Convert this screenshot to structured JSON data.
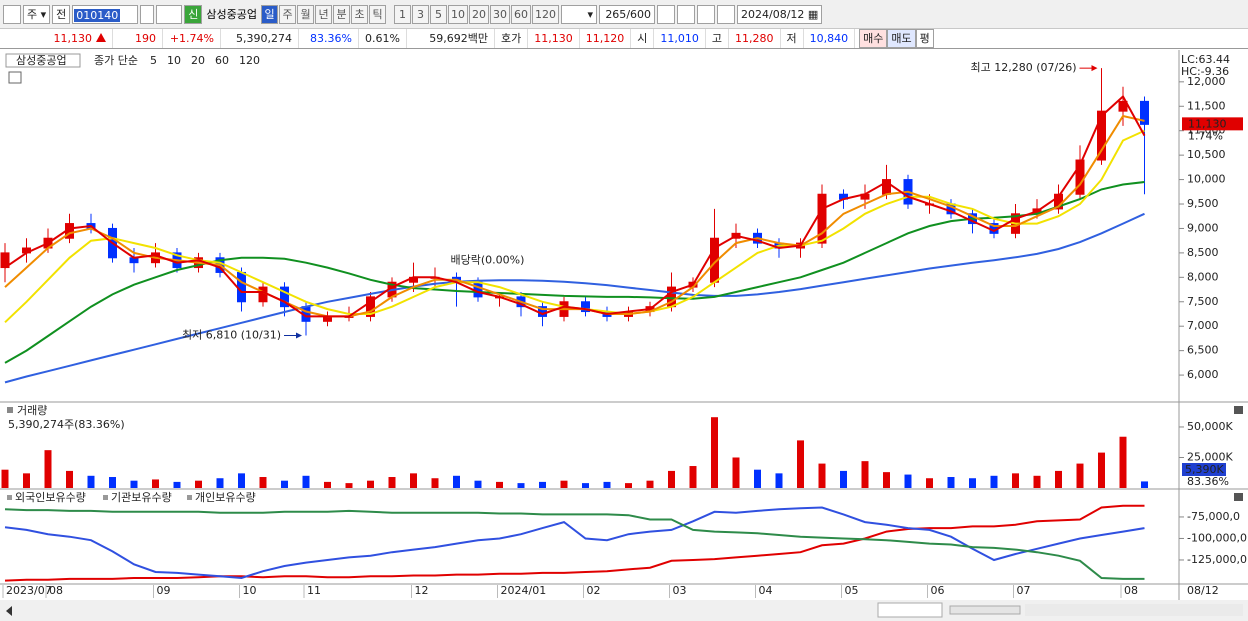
{
  "toolbar": {
    "market": "주",
    "scope": "전",
    "code": "010140",
    "credit": "신",
    "name": "삼성중공업",
    "periods": [
      "일",
      "주",
      "월",
      "년",
      "분",
      "초",
      "틱"
    ],
    "intervals": [
      "1",
      "3",
      "5",
      "10",
      "20",
      "30",
      "60",
      "120"
    ],
    "count": "265",
    "max": "/600",
    "date": "2024/08/12"
  },
  "info_bar": {
    "price": "11,130",
    "change": "190",
    "rate": "+1.74%",
    "volume": "5,390,274",
    "volume_ratio": "83.36%",
    "turnover": "0.61%",
    "amount": "59,692백만",
    "quote_label": "호가",
    "ask": "11,130",
    "bid": "11,120",
    "open_label": "시",
    "open": "11,010",
    "high_label": "고",
    "high": "11,280",
    "low_label": "저",
    "low": "10,840",
    "buy": "매수",
    "sell": "매도",
    "avg": "평"
  },
  "chart_data": [
    {
      "type": "candlestick",
      "name": "삼성중공업",
      "legend_prefix": "종가 단순",
      "open": [
        8200,
        8500,
        8600,
        8800,
        9100,
        9000,
        8400,
        8300,
        8500,
        8200,
        8400,
        8100,
        7500,
        7800,
        7400,
        7100,
        7200,
        7200,
        7600,
        7900,
        8000,
        8000,
        7900,
        7600,
        7600,
        7400,
        7200,
        7500,
        7300,
        7200,
        7300,
        7400,
        7800,
        7900,
        8800,
        8900,
        8700,
        8600,
        8700,
        9700,
        9600,
        9700,
        10000,
        9500,
        9500,
        9300,
        9100,
        8900,
        9300,
        9400,
        9700,
        10400,
        11400,
        11600
      ],
      "high": [
        8700,
        8800,
        9000,
        9300,
        9300,
        9100,
        8600,
        8700,
        8600,
        8500,
        8500,
        8200,
        7900,
        7900,
        7500,
        7300,
        7400,
        7700,
        8000,
        8300,
        8200,
        8100,
        8000,
        7700,
        7700,
        7500,
        7600,
        7600,
        7400,
        7400,
        7500,
        8100,
        8000,
        9400,
        9100,
        9000,
        8800,
        8800,
        9900,
        9800,
        9900,
        10300,
        10100,
        9700,
        9600,
        9400,
        9200,
        9500,
        9600,
        9900,
        10700,
        12280,
        11900,
        11700
      ],
      "low": [
        7900,
        8300,
        8500,
        8700,
        8900,
        8300,
        8100,
        8200,
        8100,
        8100,
        8000,
        7300,
        7400,
        7200,
        6810,
        7000,
        7100,
        7100,
        7500,
        7700,
        7800,
        7400,
        7500,
        7400,
        7200,
        7000,
        7100,
        7200,
        7100,
        7100,
        7200,
        7300,
        7700,
        7800,
        8600,
        8600,
        8400,
        8400,
        8600,
        9400,
        9400,
        9600,
        9400,
        9300,
        9200,
        8900,
        8800,
        8800,
        9200,
        9300,
        9600,
        10300,
        11100,
        9700
      ],
      "close": [
        8500,
        8600,
        8800,
        9100,
        9000,
        8400,
        8300,
        8500,
        8200,
        8400,
        8100,
        7500,
        7800,
        7400,
        7100,
        7200,
        7200,
        7600,
        7900,
        8000,
        8000,
        7900,
        7600,
        7600,
        7400,
        7200,
        7500,
        7300,
        7200,
        7300,
        7400,
        7800,
        7900,
        8800,
        8900,
        8700,
        8600,
        8700,
        9700,
        9600,
        9700,
        10000,
        9500,
        9500,
        9300,
        9100,
        8900,
        9300,
        9400,
        9700,
        10400,
        11400,
        11600,
        11130
      ],
      "up_color": "#e00000",
      "down_color": "#0030ff",
      "series": [
        {
          "name": "5",
          "color": "#e00000",
          "values": [
            8200,
            8500,
            8700,
            9000,
            9050,
            8700,
            8400,
            8450,
            8300,
            8350,
            8200,
            7700,
            7700,
            7500,
            7200,
            7200,
            7200,
            7500,
            7800,
            8000,
            8000,
            7900,
            7700,
            7600,
            7450,
            7250,
            7400,
            7350,
            7250,
            7300,
            7350,
            7700,
            7850,
            8600,
            8850,
            8750,
            8600,
            8650,
            9400,
            9600,
            9700,
            9950,
            9650,
            9500,
            9350,
            9150,
            8950,
            9200,
            9350,
            9650,
            10300,
            11300,
            11700,
            10900
          ]
        },
        {
          "name": "10",
          "color": "#f08c00",
          "values": [
            7800,
            8200,
            8600,
            8900,
            9000,
            8800,
            8500,
            8400,
            8350,
            8300,
            8250,
            7900,
            7700,
            7500,
            7300,
            7200,
            7200,
            7300,
            7600,
            7800,
            7950,
            7950,
            7800,
            7650,
            7500,
            7350,
            7350,
            7350,
            7250,
            7250,
            7300,
            7500,
            7800,
            8300,
            8700,
            8800,
            8700,
            8650,
            8900,
            9300,
            9500,
            9700,
            9750,
            9600,
            9450,
            9250,
            9050,
            9050,
            9250,
            9450,
            9900,
            10600,
            11300,
            11200
          ]
        },
        {
          "name": "20",
          "color": "#f2e200",
          "values": [
            7080,
            7500,
            7950,
            8400,
            8750,
            8800,
            8700,
            8600,
            8450,
            8350,
            8300,
            8100,
            7900,
            7700,
            7500,
            7350,
            7250,
            7250,
            7400,
            7600,
            7800,
            7900,
            7900,
            7800,
            7650,
            7500,
            7400,
            7350,
            7300,
            7250,
            7300,
            7400,
            7600,
            7900,
            8200,
            8500,
            8650,
            8650,
            8750,
            9000,
            9300,
            9500,
            9650,
            9650,
            9500,
            9400,
            9200,
            9100,
            9100,
            9250,
            9500,
            10000,
            10800,
            11000
          ]
        },
        {
          "name": "60",
          "color": "#109020",
          "values": [
            6250,
            6500,
            6800,
            7100,
            7400,
            7650,
            7850,
            8000,
            8150,
            8250,
            8350,
            8400,
            8400,
            8380,
            8300,
            8200,
            8080,
            7950,
            7850,
            7780,
            7750,
            7720,
            7700,
            7680,
            7660,
            7640,
            7620,
            7610,
            7600,
            7600,
            7590,
            7570,
            7560,
            7600,
            7700,
            7800,
            7900,
            8000,
            8150,
            8300,
            8500,
            8700,
            8900,
            9050,
            9150,
            9200,
            9220,
            9250,
            9300,
            9450,
            9600,
            9800,
            9900,
            9950
          ]
        },
        {
          "name": "120",
          "color": "#3060e0",
          "values": [
            5850,
            5970,
            6080,
            6190,
            6300,
            6410,
            6520,
            6630,
            6740,
            6850,
            6960,
            7070,
            7180,
            7290,
            7400,
            7500,
            7580,
            7660,
            7740,
            7810,
            7870,
            7910,
            7930,
            7940,
            7940,
            7930,
            7910,
            7880,
            7840,
            7790,
            7740,
            7690,
            7640,
            7620,
            7620,
            7650,
            7700,
            7760,
            7830,
            7900,
            7970,
            8040,
            8110,
            8180,
            8240,
            8300,
            8350,
            8410,
            8480,
            8580,
            8720,
            8900,
            9100,
            9300
          ]
        }
      ],
      "ylim": [
        5490,
        12590
      ],
      "yticks": [
        {
          "value": 6000,
          "label": "6,000"
        },
        {
          "value": 6500,
          "label": "6,500"
        },
        {
          "value": 7000,
          "label": "7,000"
        },
        {
          "value": 7500,
          "label": "7,500"
        },
        {
          "value": 8000,
          "label": "8,000"
        },
        {
          "value": 8500,
          "label": "8,500"
        },
        {
          "value": 9000,
          "label": "9,000"
        },
        {
          "value": 9500,
          "label": "9,500"
        },
        {
          "value": 10000,
          "label": "10,000"
        },
        {
          "value": 10500,
          "label": "10,500"
        },
        {
          "value": 11000,
          "label": "11,000"
        },
        {
          "value": 11500,
          "label": "11,500"
        },
        {
          "value": 12000,
          "label": "12,000"
        }
      ],
      "high_annotation": "최고 12,280 (07/26)",
      "low_annotation": "최저 6,810 (10/31)",
      "event_annotation": "배당락(0.00%)",
      "lc_label": "LC:63.44",
      "hc_label": "HC:-9.36",
      "last_label": "11,130",
      "last_change": "1.74%"
    },
    {
      "type": "bar",
      "name": "거래량",
      "summary": "5,390,274주(83.36%)",
      "values": [
        15000,
        12000,
        31000,
        14000,
        10000,
        9000,
        6000,
        7000,
        5000,
        6000,
        8000,
        12000,
        9000,
        6000,
        10000,
        5000,
        4000,
        6000,
        9000,
        12000,
        8000,
        10000,
        6000,
        5000,
        4000,
        5000,
        6000,
        4000,
        5000,
        4000,
        6000,
        14000,
        18000,
        58000,
        25000,
        15000,
        12000,
        39000,
        20000,
        14000,
        22000,
        13000,
        11000,
        8000,
        9000,
        8000,
        10000,
        12000,
        10000,
        14000,
        20000,
        29000,
        42000,
        5390
      ],
      "ylim": [
        0,
        68000
      ],
      "yticks": [
        {
          "value": 25000,
          "label": "25,000K"
        },
        {
          "value": 50000,
          "label": "50,000K"
        }
      ],
      "last_label": "5,390K",
      "last_ratio": "83.36%",
      "up_color": "#e00000",
      "down_color": "#0030ff"
    },
    {
      "type": "line",
      "series": [
        {
          "name": "외국인보유수량",
          "color": "#e00000",
          "values": [
            -149000000,
            -148000000,
            -148000000,
            -147000000,
            -147000000,
            -147000000,
            -146000000,
            -146000000,
            -146000000,
            -145000000,
            -144000000,
            -144000000,
            -145000000,
            -144000000,
            -144000000,
            -145000000,
            -145000000,
            -144000000,
            -144000000,
            -143000000,
            -143000000,
            -142000000,
            -142000000,
            -141000000,
            -141000000,
            -140000000,
            -140000000,
            -139000000,
            -138000000,
            -136000000,
            -134000000,
            -126000000,
            -125000000,
            -124000000,
            -122000000,
            -120000000,
            -118000000,
            -116000000,
            -108000000,
            -106000000,
            -100000000,
            -92000000,
            -89000000,
            -88000000,
            -88000000,
            -86000000,
            -86000000,
            -84000000,
            -80000000,
            -79000000,
            -78000000,
            -64000000,
            -62000000,
            -62000000
          ]
        },
        {
          "name": "기관보유수량",
          "color": "#3050e0",
          "values": [
            -87000000,
            -90000000,
            -95000000,
            -98000000,
            -102000000,
            -115000000,
            -130000000,
            -139000000,
            -140000000,
            -142000000,
            -144000000,
            -146000000,
            -138000000,
            -132000000,
            -128000000,
            -125000000,
            -122000000,
            -120000000,
            -116000000,
            -113000000,
            -110000000,
            -106000000,
            -102000000,
            -100000000,
            -95000000,
            -88000000,
            -81000000,
            -100000000,
            -102000000,
            -95000000,
            -92000000,
            -90000000,
            -80000000,
            -69000000,
            -70000000,
            -68000000,
            -66000000,
            -65000000,
            -64000000,
            -72000000,
            -81000000,
            -84000000,
            -88000000,
            -90000000,
            -98000000,
            -112000000,
            -125000000,
            -118000000,
            -112000000,
            -106000000,
            -100000000,
            -96000000,
            -92000000,
            -88000000
          ]
        },
        {
          "name": "개인보유수량",
          "color": "#2e8b4a",
          "values": [
            -66000000,
            -67000000,
            -67000000,
            -68000000,
            -68000000,
            -69000000,
            -69000000,
            -69000000,
            -69000000,
            -69000000,
            -70000000,
            -70000000,
            -70000000,
            -69000000,
            -69000000,
            -69000000,
            -68000000,
            -69000000,
            -70000000,
            -70000000,
            -70000000,
            -70000000,
            -70000000,
            -71000000,
            -71000000,
            -72000000,
            -72000000,
            -72000000,
            -72000000,
            -73000000,
            -78000000,
            -78000000,
            -90000000,
            -92000000,
            -93000000,
            -94000000,
            -96000000,
            -98000000,
            -99000000,
            -100000000,
            -101000000,
            -102000000,
            -104000000,
            -106000000,
            -107000000,
            -110000000,
            -111000000,
            -113000000,
            -116000000,
            -120000000,
            -126000000,
            -146000000,
            -147000000,
            -147000000
          ]
        }
      ],
      "ylim": [
        -150600000,
        -46000000
      ],
      "yticks": [
        {
          "value": -75000000,
          "label": "-75,000,0"
        },
        {
          "value": -100000000,
          "label": "-100,000,0"
        },
        {
          "value": -125000000,
          "label": "-125,000,0"
        }
      ],
      "categories": [
        "2023/07",
        null,
        "08",
        null,
        null,
        null,
        null,
        "09",
        null,
        null,
        null,
        "10",
        null,
        null,
        "11",
        null,
        null,
        null,
        null,
        "12",
        null,
        null,
        null,
        "2024/01",
        null,
        null,
        null,
        "02",
        null,
        null,
        null,
        "03",
        null,
        null,
        null,
        "04",
        null,
        null,
        null,
        "05",
        null,
        null,
        null,
        "06",
        null,
        null,
        null,
        "07",
        null,
        null,
        null,
        null,
        "08",
        null
      ],
      "x_end_label": "08/12"
    }
  ]
}
